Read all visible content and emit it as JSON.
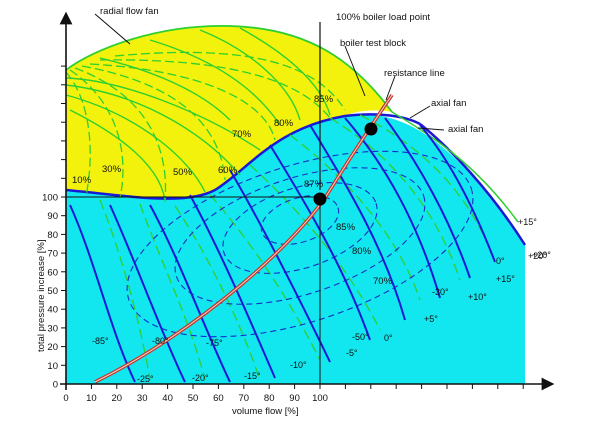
{
  "colors": {
    "radial_region": "#f2f20d",
    "axial_region": "#12e6ee",
    "blue_line": "#1a1ad6",
    "green_line": "#2fcf2f",
    "dashed_blue": "#1a2fc4",
    "resistance_line": "#c0392b",
    "boundary": "#1a1ad6"
  },
  "axes": {
    "x_title": "volume flow [%]",
    "y_title": "total pressure increase [%]",
    "x_ticks": [
      "0",
      "10",
      "20",
      "30",
      "40",
      "50",
      "60",
      "70",
      "80",
      "90",
      "100"
    ],
    "y_ticks": [
      "0",
      "10",
      "20",
      "30",
      "40",
      "50",
      "60",
      "70",
      "80",
      "90",
      "100"
    ]
  },
  "labels": {
    "radial_flow_fan": "radial flow fan",
    "boiler_load_point": "100% boiler load point",
    "boiler_test_block": "boiler test block",
    "resistance_line": "resistance line",
    "axial_fan_1": "axial fan",
    "axial_fan_2": "axial fan"
  },
  "radial_efficiency_labels": [
    "10%",
    "30%",
    "50%",
    "60%",
    "70%",
    "80%",
    "85%"
  ],
  "axial_efficiency_labels": [
    "87%",
    "85%",
    "80%",
    "70%"
  ],
  "axial_blade_angles": [
    "-25°",
    "-20°",
    "-15°",
    "-10°",
    "-5°",
    "0°",
    "+5°",
    "+10°",
    "+15°",
    "+20°"
  ],
  "radial_vane_angles": [
    "-85°",
    "-80°",
    "-75°",
    "-50°",
    "-30°",
    "0°",
    "+15°",
    "+20°"
  ],
  "points": {
    "boiler_load_point": {
      "flow": 100,
      "pressure": 98
    },
    "boiler_test_block": {
      "flow": 121,
      "pressure": 136
    }
  }
}
